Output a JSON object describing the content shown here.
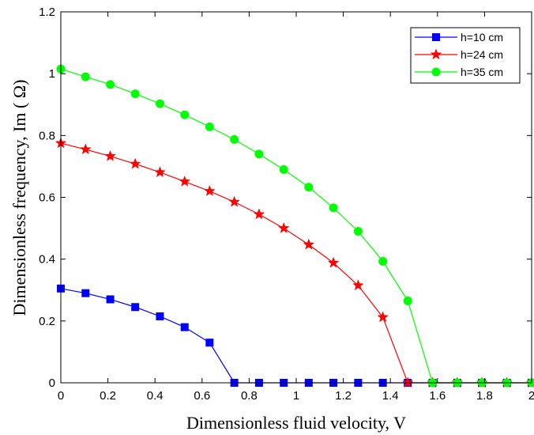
{
  "chart_data": {
    "type": "line",
    "xlabel": "Dimensionless fluid velocity, V",
    "ylabel": "Dimensionless frequency, Im ( Ω)",
    "xlim": [
      0,
      2
    ],
    "ylim": [
      0,
      1.2
    ],
    "xticks": [
      "0",
      "0.2",
      "0.4",
      "0.6",
      "0.8",
      "1",
      "1.2",
      "1.4",
      "1.6",
      "1.8",
      "2"
    ],
    "yticks": [
      "0",
      "0.2",
      "0.4",
      "0.6",
      "0.8",
      "1",
      "1.2"
    ],
    "grid": false,
    "legend_position": "top-right",
    "series": [
      {
        "name": "h=10 cm",
        "color": "#0000ff",
        "marker": "square",
        "x": [
          0,
          0.105,
          0.21,
          0.316,
          0.421,
          0.526,
          0.632,
          0.737,
          0.842,
          0.947,
          1.053,
          1.158,
          1.263,
          1.368,
          1.474,
          1.579,
          1.684,
          1.789,
          1.895,
          2.0
        ],
        "y": [
          0.305,
          0.29,
          0.27,
          0.245,
          0.215,
          0.18,
          0.13,
          0,
          0,
          0,
          0,
          0,
          0,
          0,
          0,
          0,
          0,
          0,
          0,
          0
        ]
      },
      {
        "name": "h=24 cm",
        "color": "#ff0000",
        "marker": "star",
        "x": [
          0,
          0.105,
          0.21,
          0.316,
          0.421,
          0.526,
          0.632,
          0.737,
          0.842,
          0.947,
          1.053,
          1.158,
          1.263,
          1.368,
          1.474,
          1.579,
          1.684,
          1.789,
          1.895,
          2.0
        ],
        "y": [
          0.775,
          0.755,
          0.733,
          0.708,
          0.681,
          0.651,
          0.62,
          0.585,
          0.545,
          0.5,
          0.447,
          0.388,
          0.315,
          0.212,
          0,
          0,
          0,
          0,
          0,
          0
        ]
      },
      {
        "name": "h=35 cm",
        "color": "#00ff00",
        "marker": "circle",
        "x": [
          0,
          0.105,
          0.21,
          0.316,
          0.421,
          0.526,
          0.632,
          0.737,
          0.842,
          0.947,
          1.053,
          1.158,
          1.263,
          1.368,
          1.474,
          1.579,
          1.684,
          1.789,
          1.895,
          2.0
        ],
        "y": [
          1.015,
          0.99,
          0.965,
          0.935,
          0.903,
          0.867,
          0.828,
          0.787,
          0.74,
          0.69,
          0.633,
          0.566,
          0.49,
          0.393,
          0.265,
          0,
          0,
          0,
          0,
          0
        ]
      }
    ]
  }
}
